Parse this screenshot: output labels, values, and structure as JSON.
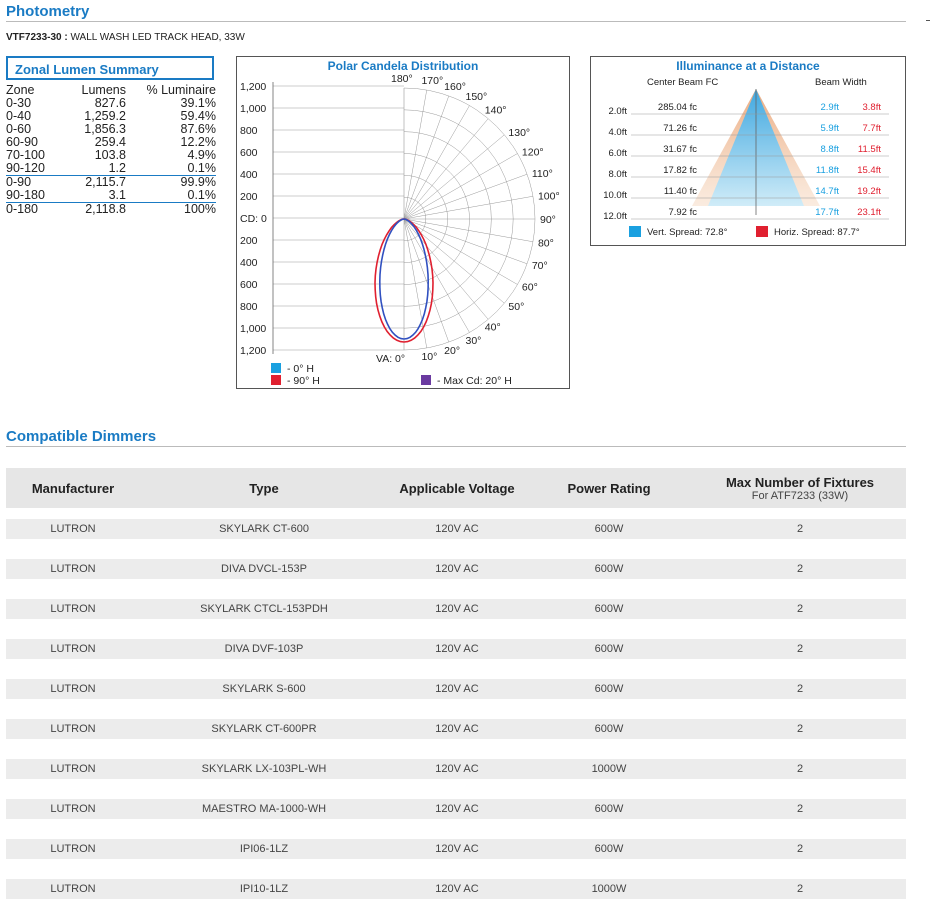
{
  "photometry": {
    "title": "Photometry",
    "product_code": "VTF7233-30 :",
    "product_desc": " WALL WASH LED TRACK HEAD, 33W"
  },
  "zonal": {
    "title": "Zonal Lumen Summary",
    "headers": [
      "Zone",
      "Lumens",
      "% Luminaire"
    ],
    "rows": [
      [
        "0-30",
        "827.6",
        "39.1%"
      ],
      [
        "0-40",
        "1,259.2",
        "59.4%"
      ],
      [
        "0-60",
        "1,856.3",
        "87.6%"
      ],
      [
        "60-90",
        "259.4",
        "12.2%"
      ],
      [
        "70-100",
        "103.8",
        "4.9%"
      ],
      [
        "90-120",
        "1.2",
        "0.1%"
      ],
      [
        "0-90",
        "2,115.7",
        "99.9%"
      ],
      [
        "90-180",
        "3.1",
        "0.1%"
      ],
      [
        "0-180",
        "2,118.8",
        "100%"
      ]
    ]
  },
  "polar": {
    "title": "Polar Candela Distribution",
    "scale_labels": [
      "1,200",
      "1,000",
      "800",
      "600",
      "400",
      "200",
      "CD: 0",
      "200",
      "400",
      "600",
      "800",
      "1,000",
      "1,200"
    ],
    "top_angle_labels": [
      "180°",
      "170°",
      "160°",
      "150°",
      "140°"
    ],
    "right_angle_labels": [
      "130°",
      "120°",
      "110°",
      "100°",
      "90°",
      "80°",
      "70°",
      "60°",
      "50°"
    ],
    "bottom_angle_labels": [
      "VA: 0°",
      "10°",
      "20°",
      "30°",
      "40°"
    ],
    "legend": {
      "h0": "- 0° H",
      "h90": "- 90° H",
      "maxcd": "- Max Cd: 20° H"
    },
    "colors": {
      "h0": "#1aa0e0",
      "h90": "#e02030",
      "maxcd": "#6a3aa0",
      "curve0": "#3050c0"
    }
  },
  "illuminance": {
    "title": "Illuminance at a Distance",
    "center_header": "Center Beam FC",
    "width_header": "Beam Width",
    "rows": [
      {
        "dist": "2.0ft",
        "fc": "285.04 fc",
        "v": "2.9ft",
        "h": "3.8ft"
      },
      {
        "dist": "4.0ft",
        "fc": "71.26 fc",
        "v": "5.9ft",
        "h": "7.7ft"
      },
      {
        "dist": "6.0ft",
        "fc": "31.67 fc",
        "v": "8.8ft",
        "h": "11.5ft"
      },
      {
        "dist": "8.0ft",
        "fc": "17.82 fc",
        "v": "11.8ft",
        "h": "15.4ft"
      },
      {
        "dist": "10.0ft",
        "fc": "11.40 fc",
        "v": "14.7ft",
        "h": "19.2ft"
      },
      {
        "dist": "12.0ft",
        "fc": "7.92 fc",
        "v": "17.7ft",
        "h": "23.1ft"
      }
    ],
    "vert_spread": "Vert. Spread: 72.8°",
    "horiz_spread": "Horiz. Spread: 87.7°",
    "colors": {
      "vert": "#1aa0e0",
      "horiz": "#e02030"
    }
  },
  "dimmers": {
    "title": "Compatible Dimmers",
    "headers": {
      "manufacturer": "Manufacturer",
      "type": "Type",
      "voltage": "Applicable Voltage",
      "power": "Power Rating",
      "max": "Max Number of Fixtures",
      "max_sub": "For ATF7233 (33W)"
    },
    "rows": [
      [
        "LUTRON",
        "SKYLARK CT-600",
        "120V AC",
        "600W",
        "2"
      ],
      [
        "LUTRON",
        "DIVA DVCL-153P",
        "120V AC",
        "600W",
        "2"
      ],
      [
        "LUTRON",
        "SKYLARK CTCL-153PDH",
        "120V AC",
        "600W",
        "2"
      ],
      [
        "LUTRON",
        "DIVA DVF-103P",
        "120V AC",
        "600W",
        "2"
      ],
      [
        "LUTRON",
        "SKYLARK S-600",
        "120V AC",
        "600W",
        "2"
      ],
      [
        "LUTRON",
        "SKYLARK CT-600PR",
        "120V AC",
        "600W",
        "2"
      ],
      [
        "LUTRON",
        "SKYLARK LX-103PL-WH",
        "120V AC",
        "1000W",
        "2"
      ],
      [
        "LUTRON",
        "MAESTRO MA-1000-WH",
        "120V AC",
        "600W",
        "2"
      ],
      [
        "LUTRON",
        "IPI06-1LZ",
        "120V AC",
        "600W",
        "2"
      ],
      [
        "LUTRON",
        "IPI10-1LZ",
        "120V AC",
        "1000W",
        "2"
      ]
    ]
  }
}
